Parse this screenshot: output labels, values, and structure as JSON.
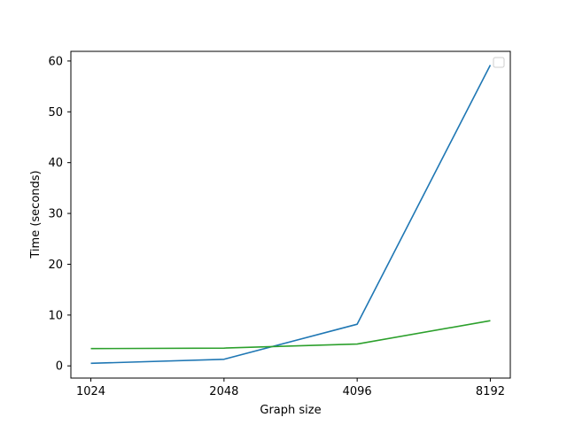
{
  "chart_data": {
    "type": "line",
    "title": "",
    "xlabel": "Graph size",
    "ylabel": "Time (seconds)",
    "x": [
      1024,
      2048,
      4096,
      8192
    ],
    "x_tick_labels": [
      "1024",
      "2048",
      "4096",
      "8192"
    ],
    "x_scale": "log2",
    "ylim": [
      -2.4,
      61.9
    ],
    "y_ticks": [
      0,
      10,
      20,
      30,
      40,
      50,
      60
    ],
    "y_tick_labels": [
      "0",
      "10",
      "20",
      "30",
      "40",
      "50",
      "60"
    ],
    "grid": false,
    "legend": {
      "visible": true,
      "placement": "top-right",
      "entries": []
    },
    "series": [
      {
        "color": "#1f77b4",
        "values": [
          0.5,
          1.3,
          8.2,
          59.2
        ]
      },
      {
        "color": "#2ca02c",
        "values": [
          3.4,
          3.5,
          4.3,
          8.9
        ]
      }
    ]
  }
}
